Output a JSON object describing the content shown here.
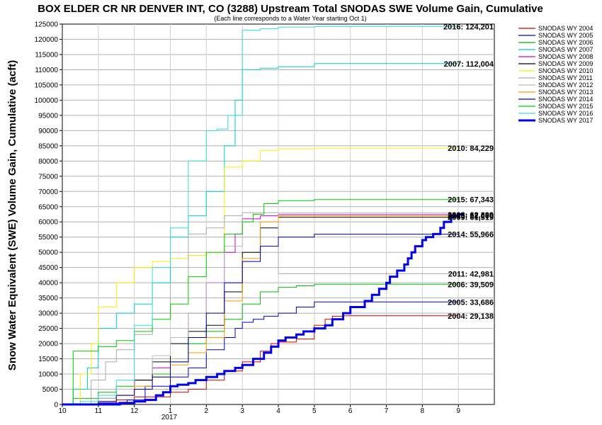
{
  "chart_data": {
    "type": "line",
    "title": "BOX ELDER CR NR DENVER INT, CO (3288) Upstream Total SNODAS SWE Volume Gain, Cumulative",
    "subtitle": "(Each line corresponds to a Water Year starting Oct 1)",
    "ylabel": "Snow Water Equivalent (SWE) Volume Gain, Cumulative (acft)",
    "xlabel": "",
    "ylim": [
      0,
      125000
    ],
    "yticks": [
      "0",
      "5000",
      "10000",
      "15000",
      "20000",
      "25000",
      "30000",
      "35000",
      "40000",
      "45000",
      "50000",
      "55000",
      "60000",
      "65000",
      "70000",
      "75000",
      "80000",
      "85000",
      "90000",
      "95000",
      "100000",
      "105000",
      "110000",
      "115000",
      "120000",
      "125000"
    ],
    "xlim": [
      10,
      22
    ],
    "xticks": [
      "10",
      "11",
      "12",
      "1",
      "2",
      "3",
      "4",
      "5",
      "6",
      "7",
      "8",
      "9"
    ],
    "xyear_label": "2017",
    "grid": true,
    "legend_position": "top-right outside",
    "series": [
      {
        "name": "SNODAS WY 2004",
        "color": "#cc0000",
        "width": 1,
        "end_label": "2004: 29,138",
        "x": [
          10,
          11.0,
          11.5,
          12.0,
          13.0,
          13.5,
          14.0,
          14.5,
          15.0,
          15.5,
          15.8,
          16.0,
          16.5,
          17.0,
          17.3,
          17.5,
          17.8,
          18.0,
          19.0,
          21.0
        ],
        "y": [
          0,
          500,
          1500,
          2500,
          4000,
          5000,
          8000,
          11000,
          14000,
          17500,
          20000,
          20500,
          21500,
          26000,
          28000,
          29000,
          29138,
          29138,
          29138,
          29138
        ]
      },
      {
        "name": "SNODAS WY 2005",
        "color": "#0000cc",
        "width": 1,
        "end_label": "2005: 33,686",
        "x": [
          10,
          11.0,
          11.8,
          12.3,
          13.0,
          13.5,
          14.0,
          14.5,
          14.8,
          15.0,
          15.3,
          15.6,
          16.0,
          16.5,
          17.0,
          18.0,
          19.0,
          21.0
        ],
        "y": [
          0,
          500,
          1500,
          6000,
          9000,
          12000,
          18000,
          22000,
          25000,
          27000,
          28000,
          29000,
          30000,
          32000,
          33686,
          33686,
          33686,
          33686
        ]
      },
      {
        "name": "SNODAS WY 2006",
        "color": "#00bb00",
        "width": 1,
        "end_label": "2006: 39,509",
        "x": [
          10,
          10.3,
          11.0,
          11.5,
          12.0,
          12.5,
          13.0,
          13.5,
          14.0,
          14.5,
          15.0,
          15.5,
          16.0,
          16.5,
          17.0,
          18.0,
          21.0
        ],
        "y": [
          0,
          2000,
          4000,
          6000,
          8000,
          10000,
          14000,
          20000,
          24000,
          28000,
          33000,
          37000,
          38500,
          39000,
          39509,
          39509,
          39509
        ]
      },
      {
        "name": "SNODAS WY 2007",
        "color": "#00cccc",
        "width": 1,
        "end_label": "2007: 112,004",
        "x": [
          10,
          10.3,
          10.7,
          11.0,
          11.5,
          12.0,
          12.5,
          13.0,
          13.5,
          14.0,
          14.5,
          14.8,
          15.0,
          15.5,
          16.0,
          17.0,
          21.0
        ],
        "y": [
          0,
          5000,
          12000,
          25000,
          30000,
          33000,
          40000,
          55000,
          62000,
          70000,
          85000,
          100000,
          110000,
          110500,
          111000,
          112004,
          112004
        ]
      },
      {
        "name": "SNODAS WY 2008",
        "color": "#cc00cc",
        "width": 1,
        "end_label": "2008: 62,399",
        "x": [
          10,
          11.0,
          11.5,
          12.0,
          12.5,
          13.0,
          13.5,
          14.0,
          14.5,
          14.8,
          15.0,
          15.5,
          16.0,
          21.0
        ],
        "y": [
          0,
          1000,
          3000,
          8000,
          12000,
          22000,
          30000,
          40000,
          50000,
          56000,
          61000,
          62000,
          62399,
          62399
        ]
      },
      {
        "name": "SNODAS WY 2009",
        "color": "#000000",
        "width": 1,
        "end_label": "2009: 61,519",
        "x": [
          10,
          11.0,
          11.5,
          12.0,
          12.5,
          13.0,
          13.5,
          14.0,
          14.5,
          15.0,
          15.5,
          16.0,
          21.0
        ],
        "y": [
          0,
          2000,
          5000,
          8000,
          14000,
          20000,
          24000,
          26000,
          37000,
          50000,
          58000,
          61519,
          61519
        ]
      },
      {
        "name": "SNODAS WY 2010",
        "color": "#ffee00",
        "width": 1,
        "end_label": "2010: 84,229",
        "x": [
          10,
          10.5,
          10.8,
          11.0,
          11.5,
          12.0,
          12.5,
          13.0,
          13.5,
          14.0,
          14.5,
          15.0,
          15.5,
          16.0,
          17.0,
          21.0
        ],
        "y": [
          0,
          10000,
          20000,
          32000,
          40000,
          45000,
          47000,
          48000,
          49000,
          50000,
          78000,
          80000,
          83500,
          84000,
          84229,
          84229
        ]
      },
      {
        "name": "SNODAS WY 2011",
        "color": "#aaaaaa",
        "width": 1,
        "end_label": "2011: 42,981",
        "x": [
          10,
          10.8,
          11.2,
          11.5,
          12.0,
          12.5,
          13.0,
          13.5,
          14.0,
          14.5,
          15.0,
          16.0,
          17.0,
          21.0
        ],
        "y": [
          0,
          8000,
          14000,
          18000,
          23000,
          30000,
          40000,
          56000,
          58000,
          62000,
          63000,
          42981,
          42981,
          42981
        ]
      },
      {
        "name": "SNODAS WY 2012",
        "color": "#bbbbbb",
        "width": 1,
        "end_label": "",
        "x": [
          10,
          11.0,
          11.5,
          12.0,
          12.5,
          13.0,
          13.5,
          14.0,
          14.5,
          15.0,
          21.0
        ],
        "y": [
          0,
          2000,
          5000,
          10000,
          16000,
          22000,
          30000,
          40000,
          52000,
          63000,
          63000
        ]
      },
      {
        "name": "SNODAS WY 2013",
        "color": "#ff9900",
        "width": 1,
        "end_label": "2013: 62,000",
        "x": [
          10,
          11.0,
          11.5,
          12.0,
          12.5,
          13.0,
          13.5,
          14.0,
          14.5,
          15.0,
          15.5,
          16.0,
          21.0
        ],
        "y": [
          0,
          1000,
          3000,
          6000,
          9000,
          13000,
          17000,
          22000,
          34000,
          48000,
          60000,
          62000,
          62000
        ]
      },
      {
        "name": "SNODAS WY 2014",
        "color": "#0000aa",
        "width": 1,
        "end_label": "2014: 55,966",
        "x": [
          10,
          11.0,
          11.5,
          12.0,
          12.5,
          13.0,
          13.5,
          14.0,
          14.5,
          15.0,
          15.5,
          16.0,
          17.0,
          21.0
        ],
        "y": [
          0,
          1000,
          3000,
          5000,
          9000,
          14000,
          22000,
          30000,
          40000,
          47000,
          52000,
          55000,
          55966,
          55966
        ]
      },
      {
        "name": "SNODAS WY 2015",
        "color": "#00cc00",
        "width": 1,
        "end_label": "2015: 67,343",
        "x": [
          10,
          10.3,
          11.0,
          11.5,
          12.0,
          12.5,
          13.0,
          13.5,
          14.0,
          14.5,
          15.0,
          15.3,
          15.6,
          16.0,
          17.0,
          21.0
        ],
        "y": [
          0,
          17500,
          19000,
          21000,
          24000,
          28000,
          33000,
          42000,
          50000,
          56000,
          60000,
          62500,
          66000,
          67000,
          67343,
          67343
        ]
      },
      {
        "name": "SNODAS WY 2016",
        "color": "#33dddd",
        "width": 1,
        "end_label": "2016: 124,201",
        "x": [
          10,
          10.5,
          11.0,
          11.5,
          12.0,
          12.5,
          13.0,
          13.5,
          14.0,
          14.3,
          14.6,
          15.0,
          15.5,
          16.0,
          17.0,
          21.0
        ],
        "y": [
          0,
          1000,
          3000,
          8000,
          26000,
          45000,
          58000,
          80000,
          90000,
          90500,
          95000,
          123000,
          123500,
          124000,
          124201,
          124201
        ]
      },
      {
        "name": "SNODAS WY 2017",
        "color": "#0000ee",
        "width": 3,
        "end_label": "",
        "x": [
          10,
          11.0,
          11.5,
          11.6,
          12.0,
          12.3,
          12.6,
          12.8,
          13.0,
          13.2,
          13.5,
          13.7,
          14.0,
          14.3,
          14.5,
          14.8,
          15.0,
          15.3,
          15.6,
          15.8,
          16.0,
          16.2,
          16.5,
          16.7,
          17.0,
          17.3,
          17.5,
          17.8,
          18.0,
          18.4,
          18.6,
          18.8,
          19.0,
          19.1,
          19.3,
          19.5,
          19.6,
          19.7,
          19.8,
          20.0,
          20.1,
          20.3,
          20.5,
          20.6,
          20.8,
          21.0,
          21.1
        ],
        "y": [
          0,
          0,
          0,
          500,
          1000,
          1500,
          3000,
          4000,
          6000,
          6500,
          7000,
          8000,
          9000,
          10000,
          11000,
          12000,
          13000,
          15000,
          17000,
          19000,
          21000,
          22000,
          23000,
          24000,
          25000,
          26000,
          28000,
          30000,
          32000,
          34000,
          36000,
          38000,
          40000,
          42000,
          44000,
          46000,
          48000,
          50000,
          52000,
          54000,
          55000,
          56000,
          58000,
          60000,
          62000,
          62500,
          63000
        ]
      }
    ]
  }
}
